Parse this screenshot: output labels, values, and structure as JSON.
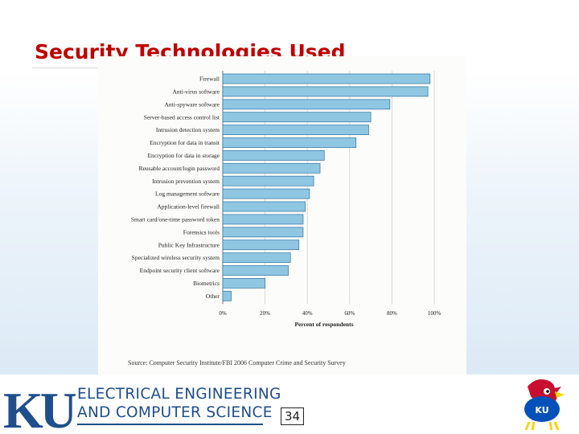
{
  "slide": {
    "title": "Security Technologies Used",
    "page_number": "34"
  },
  "footer": {
    "department_line1": "ELECTRICAL ENGINEERING",
    "department_line2": "AND COMPUTER SCIENCE",
    "logo_text": "KU",
    "mascot_text": "KU"
  },
  "figure": {
    "source": "Source: Computer Security Institute/FBI 2006 Computer Crime and Security Survey"
  },
  "colors": {
    "title": "#c00000",
    "bar_fill": "#8fc7e3",
    "bar_stroke": "#3f7ea8",
    "ku_blue": "#1f4e8c"
  },
  "chart_data": {
    "type": "bar",
    "orientation": "horizontal",
    "categories": [
      "Firewall",
      "Anti-virus software",
      "Anti-spyware software",
      "Server-based access control list",
      "Intrusion detection system",
      "Encryption for data in transit",
      "Encryption for data in storage",
      "Reusable account/login password",
      "Intrusion prevention system",
      "Log management software",
      "Application-level firewall",
      "Smart card/one-time password token",
      "Forensics tools",
      "Public Key Infrastructure",
      "Specialized wireless security system",
      "Endpoint security client software",
      "Biometrics",
      "Other"
    ],
    "values": [
      98,
      97,
      79,
      70,
      69,
      63,
      48,
      46,
      43,
      41,
      39,
      38,
      38,
      36,
      32,
      31,
      20,
      4
    ],
    "xlabel": "Percent of respondents",
    "xlim": [
      0,
      100
    ],
    "xticks": [
      "0%",
      "20%",
      "40%",
      "60%",
      "80%",
      "100%"
    ]
  }
}
